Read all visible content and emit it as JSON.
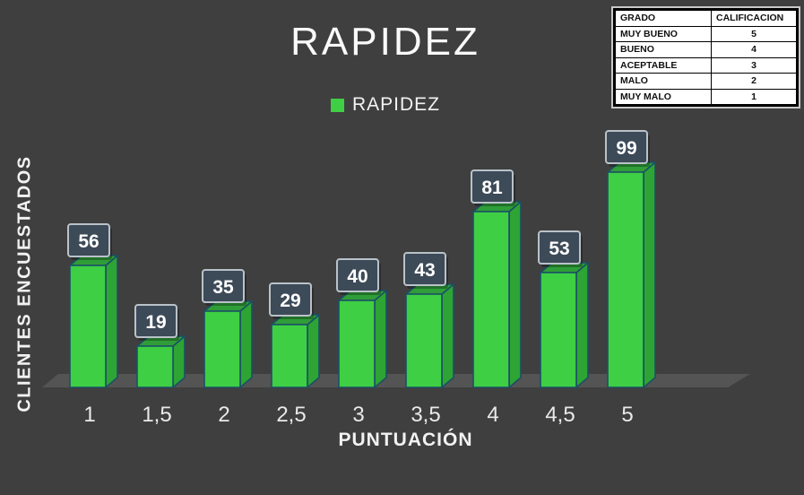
{
  "chart": {
    "title": "RAPIDEZ",
    "legend": {
      "label": "RAPIDEZ",
      "swatch_color": "#3ecf44"
    },
    "xlabel": "PUNTUACIÓN",
    "ylabel": "CLIENTES ENCUESTADOS"
  },
  "chart_data": {
    "type": "bar",
    "categories": [
      "1",
      "1,5",
      "2",
      "2,5",
      "3",
      "3,5",
      "4",
      "4,5",
      "5"
    ],
    "values": [
      56,
      19,
      35,
      29,
      40,
      43,
      81,
      53,
      99
    ],
    "title": "RAPIDEZ",
    "xlabel": "PUNTUACIÓN",
    "ylabel": "CLIENTES ENCUESTADOS",
    "legend": [
      "RAPIDEZ"
    ],
    "legend_position": "top-center",
    "grid": false,
    "ylim": [
      0,
      105
    ],
    "style": "3d-green-bars-with-value-callouts",
    "value_labels_shown": true
  },
  "colors": {
    "background": "#3f3f3f",
    "floor": "#545454",
    "bar_front": "#3ecf44",
    "bar_side": "#2da433",
    "bar_top": "#2f9d38",
    "bar_outline": "#1b4f66",
    "callout_bg": "#3d4a58",
    "callout_border": "#b9c2c9",
    "callout_text": "#ffffff",
    "tick_text": "#e9e9e9"
  },
  "grade_table": {
    "headers": [
      "GRADO",
      "CALIFICACION"
    ],
    "rows": [
      [
        "MUY BUENO",
        "5"
      ],
      [
        "BUENO",
        "4"
      ],
      [
        "ACEPTABLE",
        "3"
      ],
      [
        "MALO",
        "2"
      ],
      [
        "MUY MALO",
        "1"
      ]
    ]
  }
}
